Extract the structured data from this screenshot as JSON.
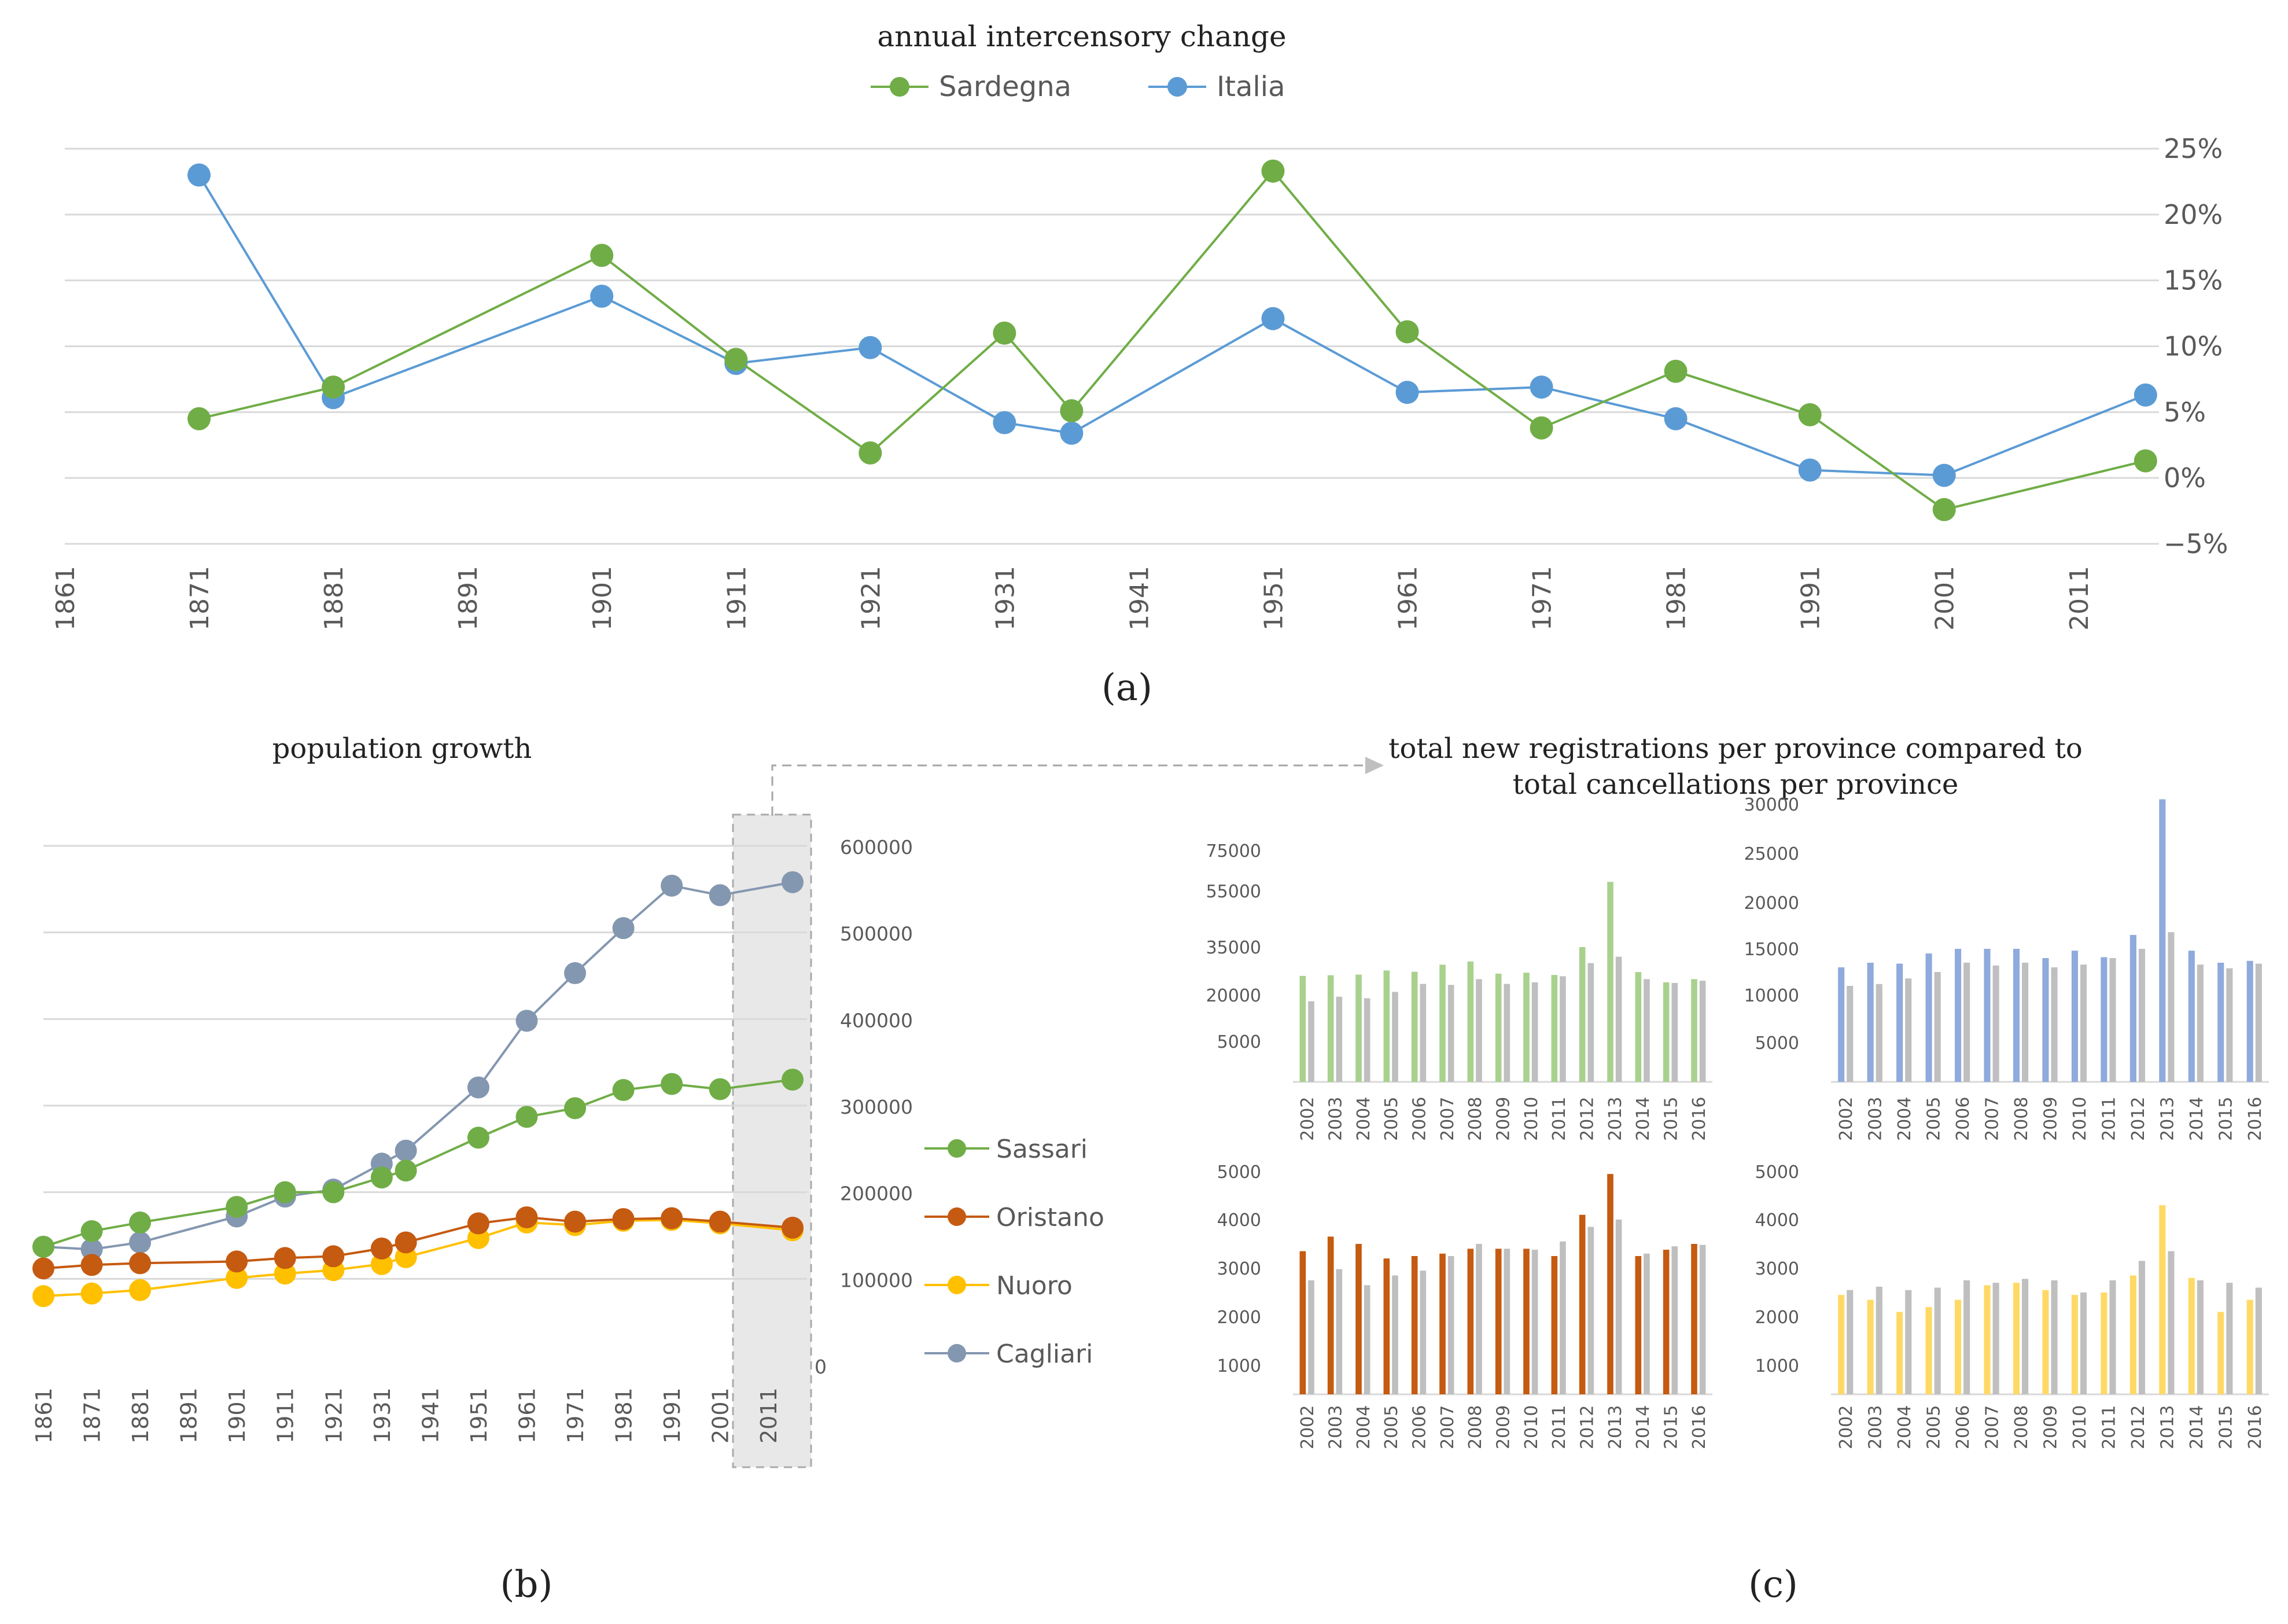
{
  "panels": {
    "a": {
      "caption": "(a)"
    },
    "b": {
      "caption": "(b)"
    },
    "c": {
      "caption": "(c)",
      "title_line1": "total new registrations per province compared to",
      "title_line2": "total cancellations per province"
    }
  },
  "colors": {
    "sardegna": "#70AD47",
    "italia": "#5B9BD5",
    "sassari": "#70AD47",
    "oristano": "#C55A11",
    "nuoro": "#FFC000",
    "cagliari": "#8497B0",
    "grey_bar": "#BFBFBF",
    "green_bar": "#A9D18E",
    "blue_bar": "#8FAADC",
    "brown_bar": "#C55A11",
    "yellow_bar": "#FFD966"
  },
  "chart_data": [
    {
      "id": "a",
      "type": "line",
      "title": "annual intercensory change",
      "x_ticks": [
        "1861",
        "1871",
        "1881",
        "1891",
        "1901",
        "1911",
        "1921",
        "1931",
        "1941",
        "1951",
        "1961",
        "1971",
        "1981",
        "1991",
        "2001",
        "2011"
      ],
      "xlim": [
        1861,
        2017
      ],
      "ylim": [
        -5,
        25
      ],
      "y_ticks": [
        -5,
        0,
        5,
        10,
        15,
        20,
        25
      ],
      "y_tick_labels": [
        "−5%",
        "0%",
        "5%",
        "10%",
        "15%",
        "20%",
        "25%"
      ],
      "legend": "top",
      "series": [
        {
          "name": "Sardegna",
          "color": "#70AD47",
          "x": [
            1871,
            1881,
            1901,
            1911,
            1921,
            1931,
            1936,
            1951,
            1961,
            1971,
            1981,
            1991,
            2001,
            2016
          ],
          "y": [
            4.5,
            6.9,
            16.9,
            9.0,
            1.9,
            11.0,
            5.1,
            23.3,
            11.1,
            3.8,
            8.1,
            4.8,
            -2.4,
            1.3
          ]
        },
        {
          "name": "Italia",
          "color": "#5B9BD5",
          "x": [
            1871,
            1881,
            1901,
            1911,
            1921,
            1931,
            1936,
            1951,
            1961,
            1971,
            1981,
            1991,
            2001,
            2016
          ],
          "y": [
            23.0,
            6.1,
            13.8,
            8.7,
            9.9,
            4.2,
            3.4,
            12.1,
            6.5,
            6.9,
            4.5,
            0.6,
            0.2,
            6.3
          ]
        }
      ]
    },
    {
      "id": "b",
      "type": "line",
      "title": "population growth",
      "x_ticks": [
        "1861",
        "1871",
        "1881",
        "1891",
        "1901",
        "1911",
        "1921",
        "1931",
        "1941",
        "1951",
        "1961",
        "1971",
        "1981",
        "1991",
        "2001",
        "2011"
      ],
      "xlim": [
        1861,
        2016
      ],
      "ylim": [
        0,
        600000
      ],
      "y_ticks": [
        0,
        100000,
        200000,
        300000,
        400000,
        500000,
        600000
      ],
      "y_tick_labels": [
        "0",
        "100000",
        "200000",
        "300000",
        "400000",
        "500000",
        "600000"
      ],
      "highlight_range": [
        2002,
        2016
      ],
      "legend": "right",
      "series": [
        {
          "name": "Sassari",
          "color": "#70AD47",
          "x": [
            1861,
            1871,
            1881,
            1901,
            1911,
            1921,
            1931,
            1936,
            1951,
            1961,
            1971,
            1981,
            1991,
            2001,
            2016
          ],
          "y": [
            137000,
            155000,
            165000,
            183000,
            200000,
            200000,
            217000,
            225000,
            263000,
            287000,
            297000,
            318000,
            325000,
            319000,
            330000
          ]
        },
        {
          "name": "Oristano",
          "color": "#C55A11",
          "x": [
            1861,
            1871,
            1881,
            1901,
            1911,
            1921,
            1931,
            1936,
            1951,
            1961,
            1971,
            1981,
            1991,
            2001,
            2016
          ],
          "y": [
            112000,
            116000,
            118000,
            120000,
            124000,
            126000,
            135000,
            142000,
            164000,
            171000,
            166000,
            169000,
            170000,
            166000,
            159000
          ]
        },
        {
          "name": "Nuoro",
          "color": "#FFC000",
          "x": [
            1861,
            1871,
            1881,
            1901,
            1911,
            1921,
            1931,
            1936,
            1951,
            1961,
            1971,
            1981,
            1991,
            2001,
            2016
          ],
          "y": [
            80000,
            83000,
            87000,
            101000,
            106000,
            110000,
            117000,
            125000,
            147000,
            165000,
            162000,
            167000,
            168000,
            164000,
            156000
          ]
        },
        {
          "name": "Cagliari",
          "color": "#8497B0",
          "x": [
            1861,
            1871,
            1881,
            1901,
            1911,
            1921,
            1931,
            1936,
            1951,
            1961,
            1971,
            1981,
            1991,
            2001,
            2016
          ],
          "y": [
            137000,
            134000,
            142000,
            172000,
            195000,
            203000,
            233000,
            248000,
            321000,
            398000,
            453000,
            505000,
            554000,
            543000,
            558000
          ]
        }
      ]
    },
    {
      "id": "c1",
      "type": "bar",
      "title": "",
      "categories": [
        "2002",
        "2003",
        "2004",
        "2005",
        "2006",
        "2007",
        "2008",
        "2009",
        "2010",
        "2011",
        "2012",
        "2013",
        "2014",
        "2015",
        "2016"
      ],
      "y_ticks": [
        5000,
        20000,
        35000,
        55000,
        75000
      ],
      "y_tick_labels": [
        "5000",
        "20000",
        "35000",
        "55000",
        "75000"
      ],
      "series": [
        {
          "name": "new registrations",
          "color": "#A9D18E",
          "values": [
            26000,
            26200,
            26400,
            27700,
            27300,
            29500,
            30500,
            26700,
            27000,
            26300,
            35000,
            59500,
            27200,
            24000,
            25000
          ]
        },
        {
          "name": "cancellations",
          "color": "#BFBFBF",
          "values": [
            18000,
            19500,
            19000,
            21000,
            23500,
            23200,
            25000,
            23500,
            24000,
            25900,
            30000,
            32000,
            25000,
            23800,
            24500
          ]
        }
      ]
    },
    {
      "id": "c2",
      "type": "bar",
      "title": "",
      "categories": [
        "2002",
        "2003",
        "2004",
        "2005",
        "2006",
        "2007",
        "2008",
        "2009",
        "2010",
        "2011",
        "2012",
        "2013",
        "2014",
        "2015",
        "2016"
      ],
      "y_ticks": [
        5000,
        10000,
        15000,
        20000,
        25000,
        30000
      ],
      "y_tick_labels": [
        "5000",
        "10000",
        "15000",
        "20000",
        "25000",
        "30000"
      ],
      "series": [
        {
          "name": "new registrations",
          "color": "#8FAADC",
          "values": [
            13000,
            13500,
            13400,
            14500,
            15000,
            15000,
            15000,
            14000,
            14800,
            14100,
            16500,
            30500,
            14800,
            13500,
            13700
          ]
        },
        {
          "name": "cancellations",
          "color": "#BFBFBF",
          "values": [
            11000,
            11200,
            11800,
            12500,
            13500,
            13200,
            13500,
            13000,
            13300,
            14000,
            15000,
            16800,
            13300,
            12900,
            13400
          ]
        }
      ]
    },
    {
      "id": "c3",
      "type": "bar",
      "title": "",
      "categories": [
        "2002",
        "2003",
        "2004",
        "2005",
        "2006",
        "2007",
        "2008",
        "2009",
        "2010",
        "2011",
        "2012",
        "2013",
        "2014",
        "2015",
        "2016"
      ],
      "y_ticks": [
        1000,
        2000,
        3000,
        4000,
        5000
      ],
      "y_tick_labels": [
        "1000",
        "2000",
        "3000",
        "4000",
        "5000"
      ],
      "series": [
        {
          "name": "new registrations",
          "color": "#C55A11",
          "values": [
            3350,
            3650,
            3500,
            3200,
            3250,
            3300,
            3400,
            3400,
            3400,
            3250,
            4100,
            4950,
            3250,
            3380,
            3500
          ]
        },
        {
          "name": "cancellations",
          "color": "#BFBFBF",
          "values": [
            2750,
            2980,
            2650,
            2850,
            2950,
            3250,
            3500,
            3400,
            3380,
            3550,
            3850,
            4000,
            3300,
            3450,
            3480
          ]
        }
      ]
    },
    {
      "id": "c4",
      "type": "bar",
      "title": "",
      "categories": [
        "2002",
        "2003",
        "2004",
        "2005",
        "2006",
        "2007",
        "2008",
        "2009",
        "2010",
        "2011",
        "2012",
        "2013",
        "2014",
        "2015",
        "2016"
      ],
      "y_ticks": [
        1000,
        2000,
        3000,
        4000,
        5000
      ],
      "y_tick_labels": [
        "1000",
        "2000",
        "3000",
        "4000",
        "5000"
      ],
      "series": [
        {
          "name": "new registrations",
          "color": "#FFD966",
          "values": [
            2450,
            2350,
            2100,
            2200,
            2350,
            2650,
            2700,
            2550,
            2450,
            2500,
            2850,
            4300,
            2800,
            2100,
            2350
          ]
        },
        {
          "name": "cancellations",
          "color": "#BFBFBF",
          "values": [
            2550,
            2620,
            2550,
            2600,
            2750,
            2700,
            2780,
            2750,
            2500,
            2750,
            3150,
            3350,
            2750,
            2700,
            2600
          ]
        }
      ]
    }
  ]
}
